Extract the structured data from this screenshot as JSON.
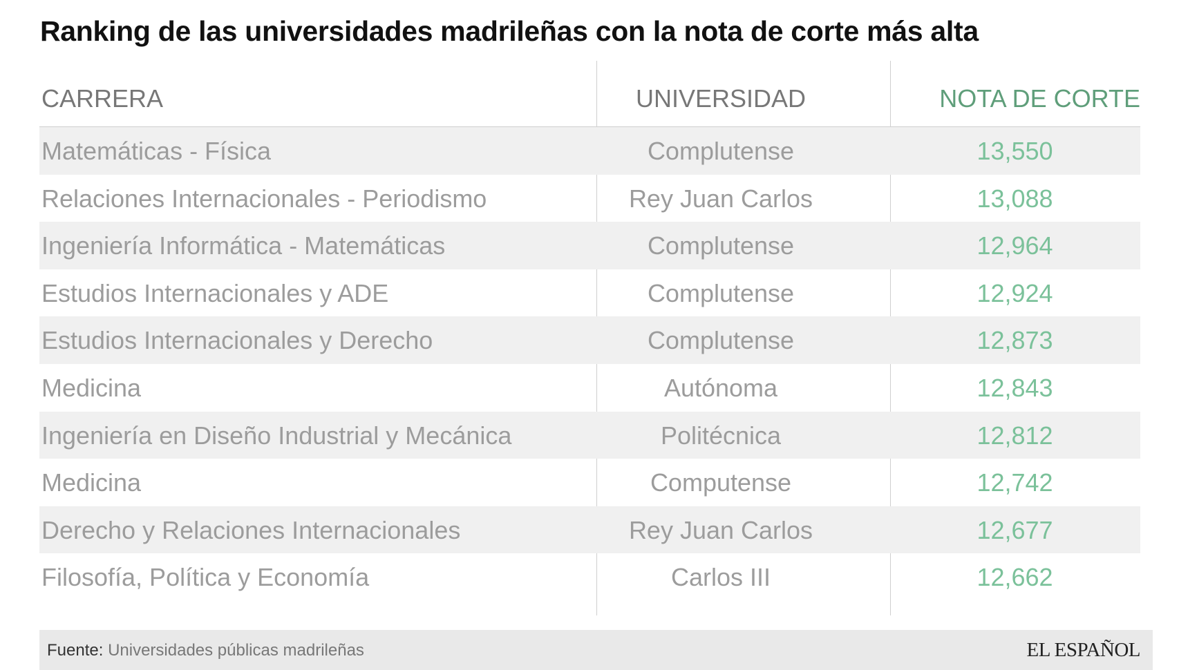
{
  "title": "Ranking de las universidades madrileñas con la nota de corte más alta",
  "colors": {
    "accent_green": "#7bc19a",
    "header_green": "#5f9e7a",
    "row_shade": "#f0f0f0",
    "footer_bg": "#e9e9e9"
  },
  "table": {
    "headers": {
      "carrera": "CARRERA",
      "universidad": "UNIVERSIDAD",
      "nota": "NOTA DE CORTE"
    },
    "rows": [
      {
        "carrera": "Matemáticas - Física",
        "universidad": "Complutense",
        "nota": "13,550"
      },
      {
        "carrera": "Relaciones Internacionales - Periodismo",
        "universidad": "Rey Juan Carlos",
        "nota": "13,088"
      },
      {
        "carrera": "Ingeniería Informática - Matemáticas",
        "universidad": "Complutense",
        "nota": "12,964"
      },
      {
        "carrera": "Estudios Internacionales y ADE",
        "universidad": "Complutense",
        "nota": "12,924"
      },
      {
        "carrera": "Estudios Internacionales y Derecho",
        "universidad": "Complutense",
        "nota": "12,873"
      },
      {
        "carrera": "Medicina",
        "universidad": "Autónoma",
        "nota": "12,843"
      },
      {
        "carrera": "Ingeniería en Diseño Industrial y Mecánica",
        "universidad": "Politécnica",
        "nota": "12,812"
      },
      {
        "carrera": "Medicina",
        "universidad": "Computense",
        "nota": "12,742"
      },
      {
        "carrera": "Derecho y Relaciones Internacionales",
        "universidad": "Rey Juan Carlos",
        "nota": "12,677"
      },
      {
        "carrera": "Filosofía, Política y Economía",
        "universidad": "Carlos III",
        "nota": "12,662"
      }
    ]
  },
  "footer": {
    "source_label": "Fuente:",
    "source_value": "Universidades públicas madrileñas",
    "logo": "EL ESPAÑOL"
  },
  "chart_data": {
    "type": "table",
    "title": "Ranking de las universidades madrileñas con la nota de corte más alta",
    "columns": [
      "CARRERA",
      "UNIVERSIDAD",
      "NOTA DE CORTE"
    ],
    "rows": [
      [
        "Matemáticas - Física",
        "Complutense",
        13.55
      ],
      [
        "Relaciones Internacionales - Periodismo",
        "Rey Juan Carlos",
        13.088
      ],
      [
        "Ingeniería Informática - Matemáticas",
        "Complutense",
        12.964
      ],
      [
        "Estudios Internacionales y ADE",
        "Complutense",
        12.924
      ],
      [
        "Estudios Internacionales y Derecho",
        "Complutense",
        12.873
      ],
      [
        "Medicina",
        "Autónoma",
        12.843
      ],
      [
        "Ingeniería en Diseño Industrial y Mecánica",
        "Politécnica",
        12.812
      ],
      [
        "Medicina",
        "Computense",
        12.742
      ],
      [
        "Derecho y Relaciones Internacionales",
        "Rey Juan Carlos",
        12.677
      ],
      [
        "Filosofía, Política y Economía",
        "Carlos III",
        12.662
      ]
    ]
  }
}
